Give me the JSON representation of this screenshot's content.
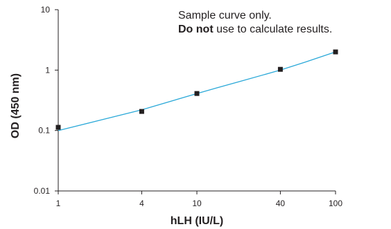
{
  "chart_data": {
    "type": "scatter",
    "xlabel": "hLH (IU/L)",
    "ylabel": "OD (450 nm)",
    "x_scale": "log",
    "y_scale": "log",
    "xlim": [
      1,
      100
    ],
    "ylim": [
      0.01,
      10
    ],
    "x_ticks": [
      1,
      4,
      10,
      40,
      100
    ],
    "x_tick_labels": [
      "1",
      "4",
      "10",
      "40",
      "100"
    ],
    "y_ticks": [
      0.01,
      0.1,
      1,
      10
    ],
    "y_tick_labels": [
      "0.01",
      "0.1",
      "1",
      "10"
    ],
    "grid": false,
    "colors": {
      "curve": "#29a8d8",
      "points": "#231f20",
      "axis": "#231f20"
    },
    "series": [
      {
        "type": "scatter",
        "x": [
          1,
          4,
          10,
          40,
          100
        ],
        "y": [
          0.113,
          0.207,
          0.41,
          1.03,
          2.0
        ]
      },
      {
        "type": "line",
        "x": [
          1,
          2,
          4,
          10,
          14,
          20,
          40,
          60,
          100
        ],
        "y": [
          0.1,
          0.148,
          0.22,
          0.41,
          0.51,
          0.64,
          1.0,
          1.35,
          2.0
        ]
      }
    ],
    "annotations": [
      {
        "parts": [
          {
            "text": "Sample curve only.",
            "bold": false
          }
        ]
      },
      {
        "parts": [
          {
            "text": "Do not",
            "bold": true
          },
          {
            "text": " use to calculate results.",
            "bold": false
          }
        ]
      }
    ]
  }
}
